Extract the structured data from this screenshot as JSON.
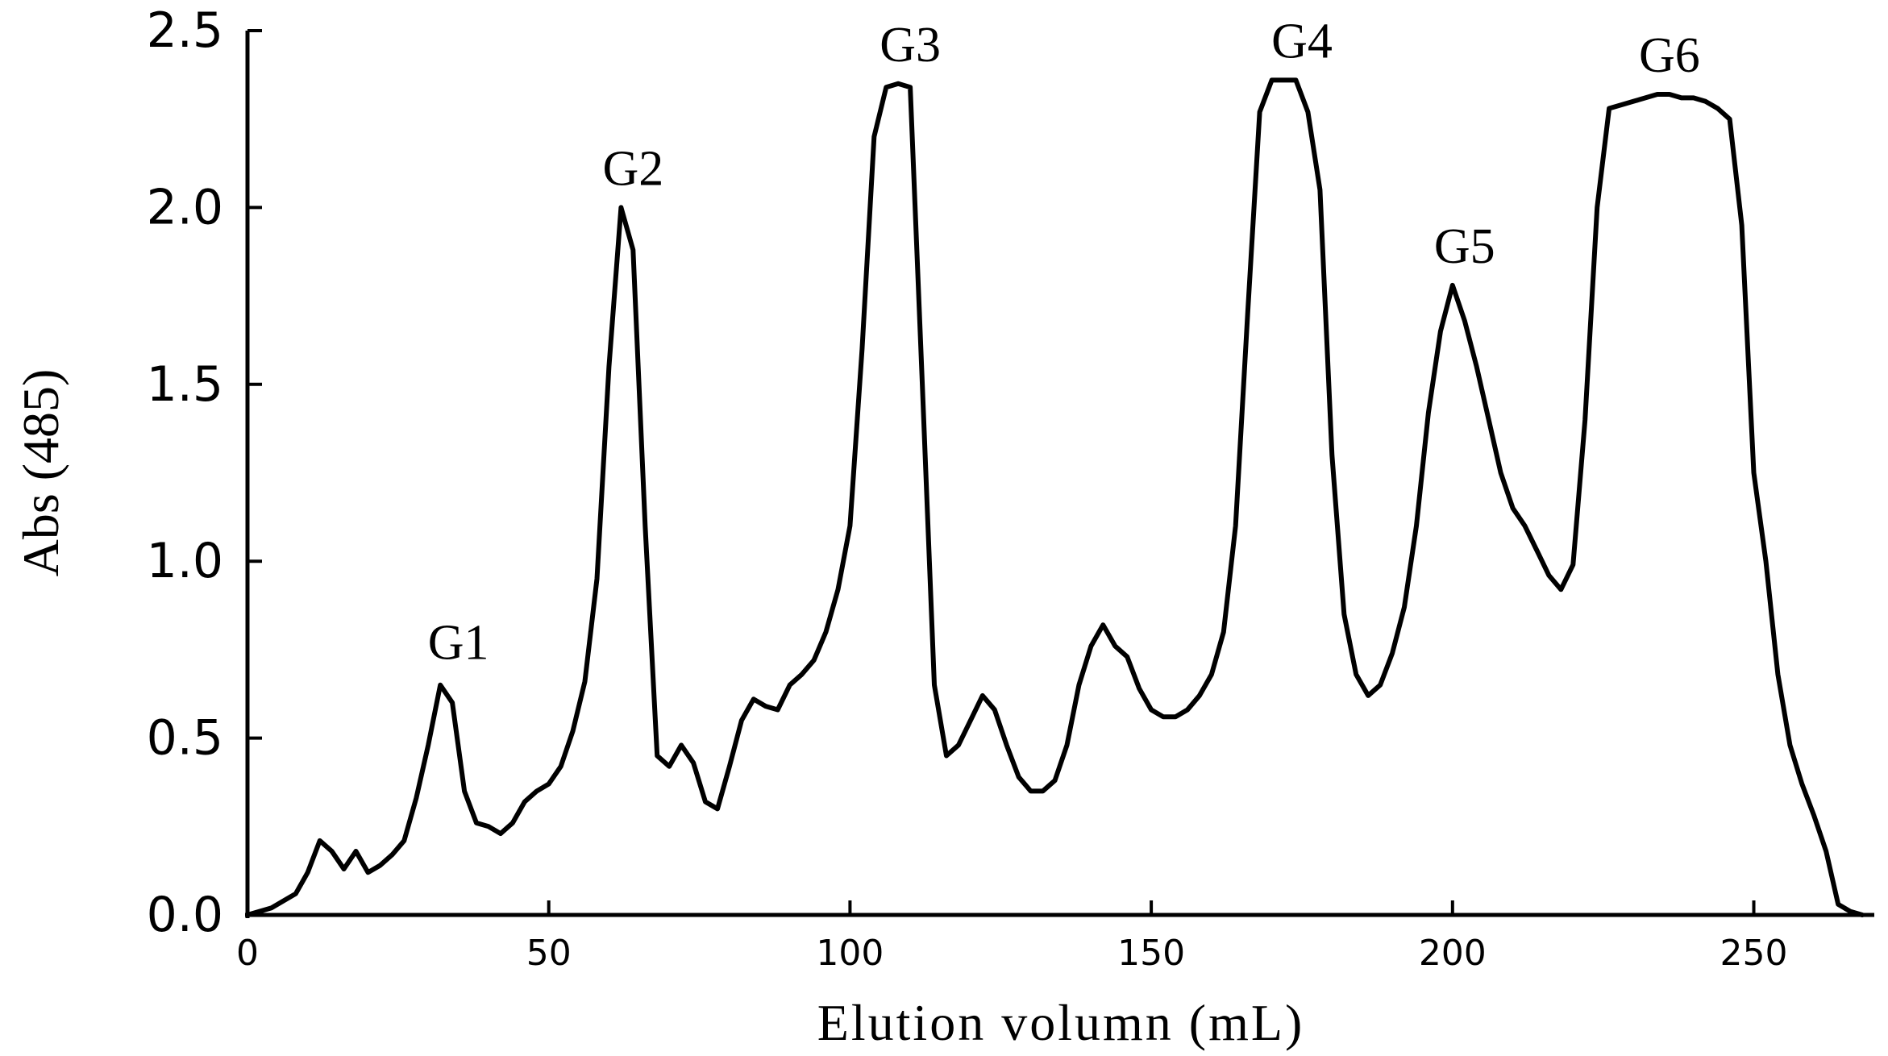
{
  "chart_data": {
    "type": "line",
    "title": "",
    "xlabel": "Elution volumn (mL)",
    "ylabel": "Abs (485)",
    "xlim": [
      0,
      270
    ],
    "ylim": [
      0,
      2.5
    ],
    "xticks": [
      0,
      50,
      100,
      150,
      200,
      250
    ],
    "yticks": [
      0.0,
      0.5,
      1.0,
      1.5,
      2.0,
      2.5
    ],
    "xtick_labels": [
      "0",
      "50",
      "100",
      "150",
      "200",
      "250"
    ],
    "ytick_labels": [
      "0.0",
      "0.5",
      "1.0",
      "1.5",
      "2.0",
      "2.5"
    ],
    "grid": false,
    "line_color": "#000000",
    "series": [
      {
        "x": [
          0,
          2,
          4,
          6,
          8,
          10,
          12,
          14,
          16,
          18,
          20,
          22,
          24,
          26,
          28,
          30,
          32,
          34,
          36,
          38,
          40,
          42,
          44,
          46,
          48,
          50,
          52,
          54,
          56,
          58,
          60,
          62,
          64,
          66,
          68,
          70,
          72,
          74,
          76,
          78,
          80,
          82,
          84,
          86,
          88,
          90,
          92,
          94,
          96,
          98,
          100,
          102,
          104,
          106,
          108,
          110,
          112,
          114,
          116,
          118,
          120,
          122,
          124,
          126,
          128,
          130,
          132,
          134,
          136,
          138,
          140,
          142,
          144,
          146,
          148,
          150,
          152,
          154,
          156,
          158,
          160,
          162,
          164,
          166,
          168,
          170,
          172,
          174,
          176,
          178,
          180,
          182,
          184,
          186,
          188,
          190,
          192,
          194,
          196,
          198,
          200,
          202,
          204,
          206,
          208,
          210,
          212,
          214,
          216,
          218,
          220,
          222,
          224,
          226,
          228,
          230,
          232,
          234,
          236,
          238,
          240,
          242,
          244,
          246,
          248,
          250,
          252,
          254,
          256,
          258,
          260,
          262,
          264,
          266,
          268
        ],
        "y": [
          0.0,
          0.01,
          0.02,
          0.04,
          0.06,
          0.12,
          0.21,
          0.18,
          0.13,
          0.18,
          0.12,
          0.14,
          0.17,
          0.21,
          0.33,
          0.48,
          0.65,
          0.6,
          0.35,
          0.26,
          0.25,
          0.23,
          0.26,
          0.32,
          0.35,
          0.37,
          0.42,
          0.52,
          0.66,
          0.95,
          1.55,
          2.0,
          1.88,
          1.1,
          0.45,
          0.42,
          0.48,
          0.43,
          0.32,
          0.3,
          0.42,
          0.55,
          0.61,
          0.59,
          0.58,
          0.65,
          0.68,
          0.72,
          0.8,
          0.92,
          1.1,
          1.6,
          2.2,
          2.34,
          2.35,
          2.34,
          1.5,
          0.65,
          0.45,
          0.48,
          0.55,
          0.62,
          0.58,
          0.48,
          0.39,
          0.35,
          0.35,
          0.38,
          0.48,
          0.65,
          0.76,
          0.82,
          0.76,
          0.73,
          0.64,
          0.58,
          0.56,
          0.56,
          0.58,
          0.62,
          0.68,
          0.8,
          1.1,
          1.7,
          2.27,
          2.36,
          2.36,
          2.36,
          2.27,
          2.05,
          1.3,
          0.85,
          0.68,
          0.62,
          0.65,
          0.74,
          0.87,
          1.1,
          1.42,
          1.65,
          1.78,
          1.68,
          1.55,
          1.4,
          1.25,
          1.15,
          1.1,
          1.03,
          0.96,
          0.92,
          0.99,
          1.4,
          2.0,
          2.28,
          2.29,
          2.3,
          2.31,
          2.32,
          2.32,
          2.31,
          2.31,
          2.3,
          2.28,
          2.25,
          1.95,
          1.25,
          1.0,
          0.68,
          0.48,
          0.37,
          0.28,
          0.18,
          0.03,
          0.01,
          0.0
        ]
      }
    ],
    "annotations": [
      {
        "text": "G1",
        "x": 35,
        "y": 0.66
      },
      {
        "text": "G2",
        "x": 64,
        "y": 2.0
      },
      {
        "text": "G3",
        "x": 110,
        "y": 2.35
      },
      {
        "text": "G4",
        "x": 175,
        "y": 2.36
      },
      {
        "text": "G5",
        "x": 202,
        "y": 1.78
      },
      {
        "text": "G6",
        "x": 236,
        "y": 2.32
      }
    ]
  }
}
